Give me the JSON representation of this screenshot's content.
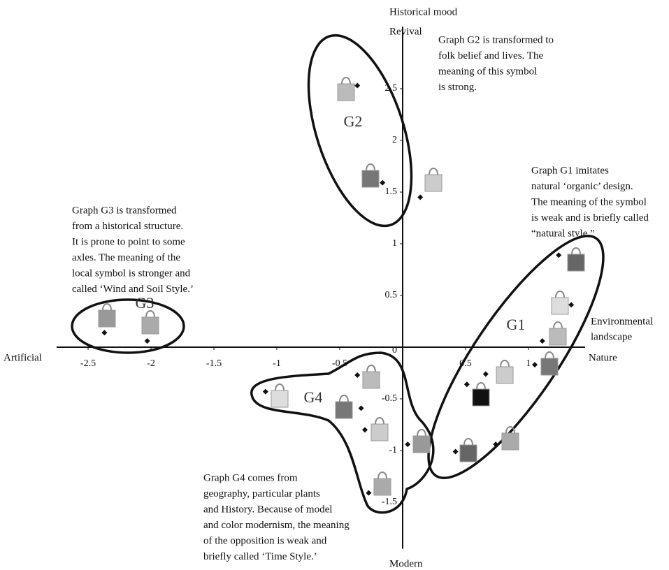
{
  "chart_data": {
    "type": "scatter",
    "x": [
      -0.36,
      -0.16,
      0.14,
      -2.37,
      -2.03,
      1.24,
      1.34,
      1.11,
      1.05,
      0.66,
      0.51,
      0.74,
      0.42,
      -1.09,
      -0.36,
      -0.33,
      -0.3,
      0.04,
      -0.27
    ],
    "values": [
      2.53,
      1.59,
      1.45,
      0.14,
      0.06,
      0.89,
      0.41,
      0.06,
      -0.17,
      -0.26,
      -0.36,
      -0.94,
      -1.01,
      -0.43,
      -0.27,
      -0.59,
      -0.8,
      -0.94,
      -1.41
    ],
    "color": "#111111",
    "xlim": [
      -2.75,
      1.45
    ],
    "ylim": [
      -1.95,
      3.1
    ],
    "xticks": [
      -2.5,
      -2,
      -1.5,
      -1,
      -0.5,
      0.5,
      1
    ],
    "yticks": [
      -1.5,
      -1,
      -0.5,
      0,
      0.5,
      1,
      1.5,
      2,
      2.5
    ],
    "axis_labels": {
      "top": [
        "Historical mood",
        "Revival"
      ],
      "bottom": "Modern",
      "left": "Artificial",
      "right": "Nature",
      "right_upper": [
        "Environmental",
        "landscape"
      ]
    },
    "groups": [
      "G1",
      "G2",
      "G3",
      "G4"
    ],
    "annotations": [
      [
        "Graph G1 imitates",
        "natural ‘organic’ design.",
        "The meaning of the symbol",
        "is weak and is briefly called",
        "“natural style.”"
      ],
      [
        "Graph G2 is transformed to",
        "folk belief and lives. The",
        "meaning of this symbol",
        "is strong."
      ],
      [
        "Graph G3 is transformed",
        "from a historical structure.",
        "It is prone to point to some",
        "axles. The meaning of the",
        "local symbol is stronger and",
        "called ‘Wind and Soil Style.’"
      ],
      [
        "Graph G4 comes from",
        "geography, particular plants",
        "and History. Because of model",
        "and color modernism, the meaning",
        "of the opposition is weak and",
        "briefly called ‘Time Style.’"
      ]
    ]
  }
}
